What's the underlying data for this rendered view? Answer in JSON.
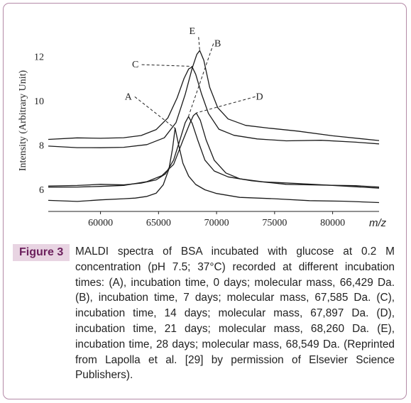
{
  "figure": {
    "label": "Figure 3",
    "caption": "MALDI spectra of BSA incubated with glucose at 0.2 M concentration (pH 7.5; 37°C) recorded at different incubation times: (A), incubation time, 0 days; molecular mass, 66,429 Da. (B), incubation time, 7 days; molecular mass, 67,585 Da. (C), incubation time, 14 days; molecular mass, 67,897 Da. (D), incubation time, 21 days; molecular mass, 68,260 Da. (E), incubation time, 28 days; molecular mass, 68,549 Da. (Reprinted from Lapolla et al. [29] by permission of Elsevier Science Publishers)."
  },
  "chart_data": {
    "type": "line",
    "xlabel": "m/z",
    "ylabel": "Intensity (Arbitrary Unit)",
    "xlim": [
      55500,
      84000
    ],
    "ylim": [
      5.0,
      13.2
    ],
    "x_ticks": [
      60000,
      65000,
      70000,
      75000,
      80000
    ],
    "x_tick_labels": [
      "60000",
      "65000",
      "70000",
      "75000",
      "80000"
    ],
    "y_ticks": [
      6,
      8,
      10,
      12
    ],
    "y_tick_labels": [
      "6",
      "8",
      "10",
      "12"
    ],
    "grid": false,
    "legend": "none",
    "series": [
      {
        "name": "A",
        "x": [
          55500,
          58000,
          60000,
          62000,
          63000,
          64000,
          64800,
          65400,
          65900,
          66200,
          66429,
          66700,
          67100,
          67600,
          68200,
          69000,
          70000,
          72000,
          75000,
          78000,
          81000,
          84000
        ],
        "y": [
          5.5,
          5.45,
          5.5,
          5.55,
          5.6,
          5.7,
          5.85,
          6.2,
          6.9,
          7.8,
          8.75,
          8.1,
          7.2,
          6.6,
          6.2,
          5.95,
          5.8,
          5.65,
          5.6,
          5.5,
          5.45,
          5.4
        ]
      },
      {
        "name": "B",
        "x": [
          55500,
          58000,
          60000,
          62000,
          63500,
          64800,
          65600,
          66300,
          66900,
          67300,
          67585,
          67900,
          68400,
          69000,
          69800,
          71000,
          73000,
          76000,
          79000,
          82000,
          84000
        ],
        "y": [
          6.15,
          6.15,
          6.2,
          6.2,
          6.3,
          6.45,
          6.7,
          7.3,
          8.3,
          9.0,
          9.3,
          9.0,
          8.2,
          7.3,
          6.8,
          6.55,
          6.4,
          6.25,
          6.2,
          6.15,
          6.1
        ]
      },
      {
        "name": "C",
        "x": [
          55500,
          58000,
          60000,
          62000,
          63500,
          64800,
          65800,
          66600,
          67200,
          67600,
          67897,
          68200,
          68700,
          69300,
          70200,
          71500,
          73500,
          76000,
          79000,
          82000,
          84000
        ],
        "y": [
          8.25,
          8.3,
          8.3,
          8.35,
          8.45,
          8.7,
          9.2,
          10.1,
          11.0,
          11.45,
          11.55,
          11.2,
          10.3,
          9.4,
          8.7,
          8.45,
          8.3,
          8.2,
          8.2,
          8.1,
          8.05
        ]
      },
      {
        "name": "D",
        "x": [
          55500,
          58000,
          60000,
          62000,
          64000,
          65300,
          66300,
          67100,
          67700,
          68000,
          68260,
          68600,
          69100,
          69800,
          70800,
          72000,
          74000,
          77000,
          80000,
          84000
        ],
        "y": [
          6.1,
          6.1,
          6.15,
          6.2,
          6.35,
          6.6,
          7.1,
          8.2,
          9.0,
          9.35,
          9.45,
          9.1,
          8.2,
          7.3,
          6.75,
          6.5,
          6.35,
          6.25,
          6.15,
          6.05
        ]
      },
      {
        "name": "E",
        "x": [
          55500,
          58000,
          60000,
          62000,
          64000,
          65500,
          66500,
          67300,
          67900,
          68300,
          68549,
          68900,
          69400,
          70100,
          71000,
          72500,
          74500,
          77000,
          80000,
          84000
        ],
        "y": [
          7.95,
          7.9,
          7.9,
          7.9,
          8.0,
          8.3,
          9.0,
          10.3,
          11.5,
          12.1,
          12.25,
          11.8,
          10.6,
          9.7,
          9.2,
          8.9,
          8.75,
          8.6,
          8.4,
          8.2
        ]
      }
    ],
    "annotations": [
      {
        "text": "A",
        "x": 62400,
        "y": 10.05,
        "peak_x": 66429,
        "peak_y": 8.75
      },
      {
        "text": "B",
        "x": 70100,
        "y": 12.45,
        "peak_x": 67585,
        "peak_y": 9.3
      },
      {
        "text": "C",
        "x": 63000,
        "y": 11.5,
        "peak_x": 67897,
        "peak_y": 11.55
      },
      {
        "text": "D",
        "x": 73700,
        "y": 10.05,
        "peak_x": 68260,
        "peak_y": 9.45
      },
      {
        "text": "E",
        "x": 67900,
        "y": 13.0,
        "peak_x": 68549,
        "peak_y": 12.25
      }
    ]
  }
}
